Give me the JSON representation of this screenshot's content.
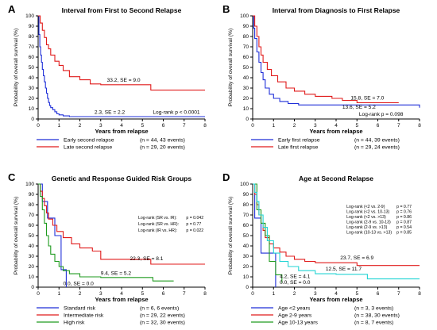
{
  "figure": {
    "colors": {
      "blue": "#1f2fd8",
      "red": "#e01b1b",
      "green": "#1e9a1e",
      "cyan": "#22d4d4",
      "axis": "#000000"
    }
  },
  "chart_data": [
    {
      "type": "line",
      "panel_letter": "A",
      "title": "Interval from First to Second Relapse",
      "xlabel": "Years from relapse",
      "ylabel": "Probability of overall survival (%)",
      "xlim": [
        0,
        8
      ],
      "ylim": [
        0,
        100
      ],
      "xticks": [
        "0",
        "1",
        "2",
        "3",
        "4",
        "5",
        "6",
        "7",
        "8"
      ],
      "yticks": [
        "0",
        "10",
        "20",
        "30",
        "40",
        "50",
        "60",
        "70",
        "80",
        "90",
        "100"
      ],
      "grid": false,
      "legend": "below",
      "series": [
        {
          "name": "Early second relapse",
          "legend_counts": "(n = 44, 43 events)",
          "color": "#1f2fd8",
          "x": [
            0,
            0.04,
            0.08,
            0.12,
            0.16,
            0.2,
            0.25,
            0.3,
            0.35,
            0.4,
            0.45,
            0.5,
            0.55,
            0.6,
            0.7,
            0.8,
            0.9,
            1.0,
            1.2,
            1.5,
            2.3,
            8.0
          ],
          "y": [
            100,
            82,
            70,
            62,
            55,
            48,
            42,
            36,
            30,
            25,
            20,
            16,
            13,
            11,
            9,
            7,
            5,
            4,
            3,
            2.3,
            2.3,
            2.3
          ]
        },
        {
          "name": "Late second relapse",
          "legend_counts": "(n = 29, 20 events)",
          "color": "#e01b1b",
          "x": [
            0,
            0.1,
            0.2,
            0.3,
            0.4,
            0.5,
            0.6,
            0.8,
            1.0,
            1.2,
            1.5,
            2.0,
            2.5,
            3.0,
            5.4,
            8.0
          ],
          "y": [
            100,
            93,
            86,
            79,
            72,
            68,
            62,
            56,
            52,
            47,
            41,
            38,
            34,
            33.2,
            28,
            28
          ]
        }
      ],
      "annotations": [
        {
          "text": "33.2, SE = 9.0",
          "x": 3.3,
          "y": 36
        },
        {
          "text": "2.3, SE = 2.2",
          "x": 2.7,
          "y": 5
        },
        {
          "text": "Log-rank p < 0.0001",
          "x": 5.5,
          "y": 5
        }
      ]
    },
    {
      "type": "line",
      "panel_letter": "B",
      "title": "Interval from Diagnosis to First Relapse",
      "xlabel": "Years from relapse",
      "ylabel": "Probability of overall survival (%)",
      "xlim": [
        0,
        8
      ],
      "ylim": [
        0,
        100
      ],
      "xticks": [
        "0",
        "1",
        "2",
        "3",
        "4",
        "5",
        "6",
        "7",
        "8"
      ],
      "yticks": [
        "0",
        "10",
        "20",
        "30",
        "40",
        "50",
        "60",
        "70",
        "80",
        "90",
        "100"
      ],
      "grid": false,
      "legend": "below",
      "series": [
        {
          "name": "Early first relapse",
          "legend_counts": "(n = 44, 39 events)",
          "color": "#1f2fd8",
          "x": [
            0,
            0.05,
            0.1,
            0.2,
            0.3,
            0.4,
            0.5,
            0.6,
            0.8,
            1.0,
            1.3,
            1.7,
            2.2,
            8.0
          ],
          "y": [
            100,
            88,
            78,
            65,
            55,
            45,
            38,
            30,
            24,
            20,
            17,
            15,
            13.6,
            11
          ]
        },
        {
          "name": "Late first relapse",
          "legend_counts": "(n = 29, 24 events)",
          "color": "#e01b1b",
          "x": [
            0,
            0.1,
            0.2,
            0.3,
            0.4,
            0.5,
            0.7,
            0.9,
            1.2,
            1.6,
            2.0,
            2.5,
            3.0,
            3.8,
            4.3,
            5.0,
            7.0
          ],
          "y": [
            100,
            90,
            80,
            70,
            62,
            55,
            48,
            42,
            36,
            30,
            27,
            24,
            22,
            20,
            18,
            15.8,
            15.8
          ]
        }
      ],
      "annotations": [
        {
          "text": "15.8, SE = 7.0",
          "x": 4.7,
          "y": 19
        },
        {
          "text": "13.6, SE = 5.2",
          "x": 4.3,
          "y": 10
        },
        {
          "text": "Log-rank p = 0.098",
          "x": 5.1,
          "y": 3
        }
      ]
    },
    {
      "type": "line",
      "panel_letter": "C",
      "title": "Genetic and Response Guided Risk Groups",
      "xlabel": "Years from relapse",
      "ylabel": "Probability of overall survival (%)",
      "xlim": [
        0,
        8
      ],
      "ylim": [
        0,
        100
      ],
      "xticks": [
        "0",
        "1",
        "2",
        "3",
        "4",
        "5",
        "6",
        "7",
        "8"
      ],
      "yticks": [
        "0",
        "10",
        "20",
        "30",
        "40",
        "50",
        "60",
        "70",
        "80",
        "90",
        "100"
      ],
      "grid": false,
      "legend": "below",
      "series": [
        {
          "name": "Standard risk",
          "legend_counts": "(n = 6, 6 events)",
          "color": "#1f2fd8",
          "x": [
            0,
            0.2,
            0.45,
            0.8,
            1.1,
            1.35
          ],
          "y": [
            100,
            83,
            67,
            50,
            17,
            0
          ]
        },
        {
          "name": "Intermediate risk",
          "legend_counts": "(n = 29, 22 events)",
          "color": "#e01b1b",
          "x": [
            0,
            0.1,
            0.2,
            0.3,
            0.4,
            0.5,
            0.7,
            0.9,
            1.2,
            1.6,
            2.0,
            2.6,
            3.0,
            5.4,
            8.0
          ],
          "y": [
            100,
            93,
            86,
            79,
            72,
            66,
            60,
            54,
            48,
            42,
            38,
            35,
            27,
            22.3,
            22.3
          ]
        },
        {
          "name": "High risk",
          "legend_counts": "(n = 32, 30 events)",
          "color": "#1e9a1e",
          "x": [
            0,
            0.1,
            0.2,
            0.3,
            0.4,
            0.5,
            0.6,
            0.8,
            1.0,
            1.2,
            1.5,
            2.0,
            3.0,
            5.5,
            6.5
          ],
          "y": [
            100,
            88,
            75,
            62,
            50,
            40,
            32,
            25,
            20,
            16,
            13,
            10,
            9.4,
            6,
            6
          ]
        }
      ],
      "annotations": [
        {
          "text": "Log-rank (SR vs. IR):",
          "x": 4.8,
          "y": 66
        },
        {
          "text": "Log-rank (SR vs. HR):",
          "x": 4.8,
          "y": 60
        },
        {
          "text": "Log-rank (IR vs. HR):",
          "x": 4.8,
          "y": 54
        },
        {
          "text": "p = 0.042",
          "x": 7.1,
          "y": 66
        },
        {
          "text": "p = 0.77",
          "x": 7.1,
          "y": 60
        },
        {
          "text": "p = 0.022",
          "x": 7.1,
          "y": 54
        },
        {
          "text": "22.3, SE = 8.1",
          "x": 4.4,
          "y": 26
        },
        {
          "text": "9.4, SE = 5.2",
          "x": 3.0,
          "y": 12
        },
        {
          "text": "0.0, SE = 0.0",
          "x": 1.2,
          "y": 2
        }
      ]
    },
    {
      "type": "line",
      "panel_letter": "D",
      "title": "Age at Second Relapse",
      "xlabel": "Years from relapse",
      "ylabel": "Probability of overall survival (%)",
      "xlim": [
        0,
        8
      ],
      "ylim": [
        0,
        100
      ],
      "xticks": [
        "0",
        "1",
        "2",
        "3",
        "4",
        "5",
        "6",
        "7",
        "8"
      ],
      "yticks": [
        "0",
        "10",
        "20",
        "30",
        "40",
        "50",
        "60",
        "70",
        "80",
        "90",
        "100"
      ],
      "grid": false,
      "legend": "below",
      "series": [
        {
          "name": "Age <2 years",
          "legend_counts": "(n = 3, 3 events)",
          "color": "#1f2fd8",
          "x": [
            0,
            0.1,
            0.4,
            1.1
          ],
          "y": [
            100,
            67,
            33,
            0
          ]
        },
        {
          "name": "Age 2-9 years",
          "legend_counts": "(n = 38, 30 events)",
          "color": "#e01b1b",
          "x": [
            0,
            0.1,
            0.2,
            0.3,
            0.4,
            0.5,
            0.6,
            0.8,
            1.0,
            1.3,
            1.6,
            2.0,
            2.5,
            3.0,
            4.0,
            5.0,
            8.0
          ],
          "y": [
            100,
            90,
            80,
            70,
            62,
            55,
            48,
            42,
            38,
            34,
            30,
            27,
            25,
            23.7,
            23.7,
            21,
            21
          ]
        },
        {
          "name": "Age 10-13 years",
          "legend_counts": "(n = 8, 7 events)",
          "color": "#1e9a1e",
          "x": [
            0,
            0.2,
            0.4,
            0.6,
            0.8,
            1.1,
            1.4
          ],
          "y": [
            100,
            75,
            62,
            50,
            25,
            12,
            4.2
          ]
        },
        {
          "name": "Age >13 years",
          "legend_counts": "(n = 24, 23 events)",
          "color": "#22d4d4",
          "x": [
            0,
            0.1,
            0.2,
            0.3,
            0.5,
            0.7,
            1.0,
            1.3,
            1.7,
            2.2,
            3.0,
            4.0,
            5.5,
            8.0
          ],
          "y": [
            100,
            92,
            83,
            70,
            58,
            45,
            33,
            25,
            20,
            16,
            13,
            12.5,
            8,
            8
          ]
        }
      ],
      "annotations": [
        {
          "text": "Log-rank (<2 vs. 2-9)",
          "x": 4.5,
          "y": 77
        },
        {
          "text": "Log-rank (<2 vs. 10-13)",
          "x": 4.5,
          "y": 72
        },
        {
          "text": "Log-rank (<2 vs. >13)",
          "x": 4.5,
          "y": 67
        },
        {
          "text": "Log-rank (2-9 vs. 10-13)",
          "x": 4.5,
          "y": 62
        },
        {
          "text": "Log-rank (2-9 vs. >13)",
          "x": 4.5,
          "y": 57
        },
        {
          "text": "Log-rank (10-13 vs. >13)",
          "x": 4.5,
          "y": 52
        },
        {
          "text": "p = 0.77",
          "x": 6.9,
          "y": 77
        },
        {
          "text": "p = 0.76",
          "x": 6.9,
          "y": 72
        },
        {
          "text": "p = 0.86",
          "x": 6.9,
          "y": 67
        },
        {
          "text": "p = 0.87",
          "x": 6.9,
          "y": 62
        },
        {
          "text": "p = 0.54",
          "x": 6.9,
          "y": 57
        },
        {
          "text": "p = 0.85",
          "x": 6.9,
          "y": 52
        },
        {
          "text": "23.7, SE = 6.9",
          "x": 4.2,
          "y": 27
        },
        {
          "text": "4.2, SE = 4.1",
          "x": 1.3,
          "y": 9
        },
        {
          "text": "0.0, SE = 0.0",
          "x": 1.3,
          "y": 3
        },
        {
          "text": "12.5, SE = 11.7",
          "x": 3.5,
          "y": 16
        }
      ]
    }
  ]
}
